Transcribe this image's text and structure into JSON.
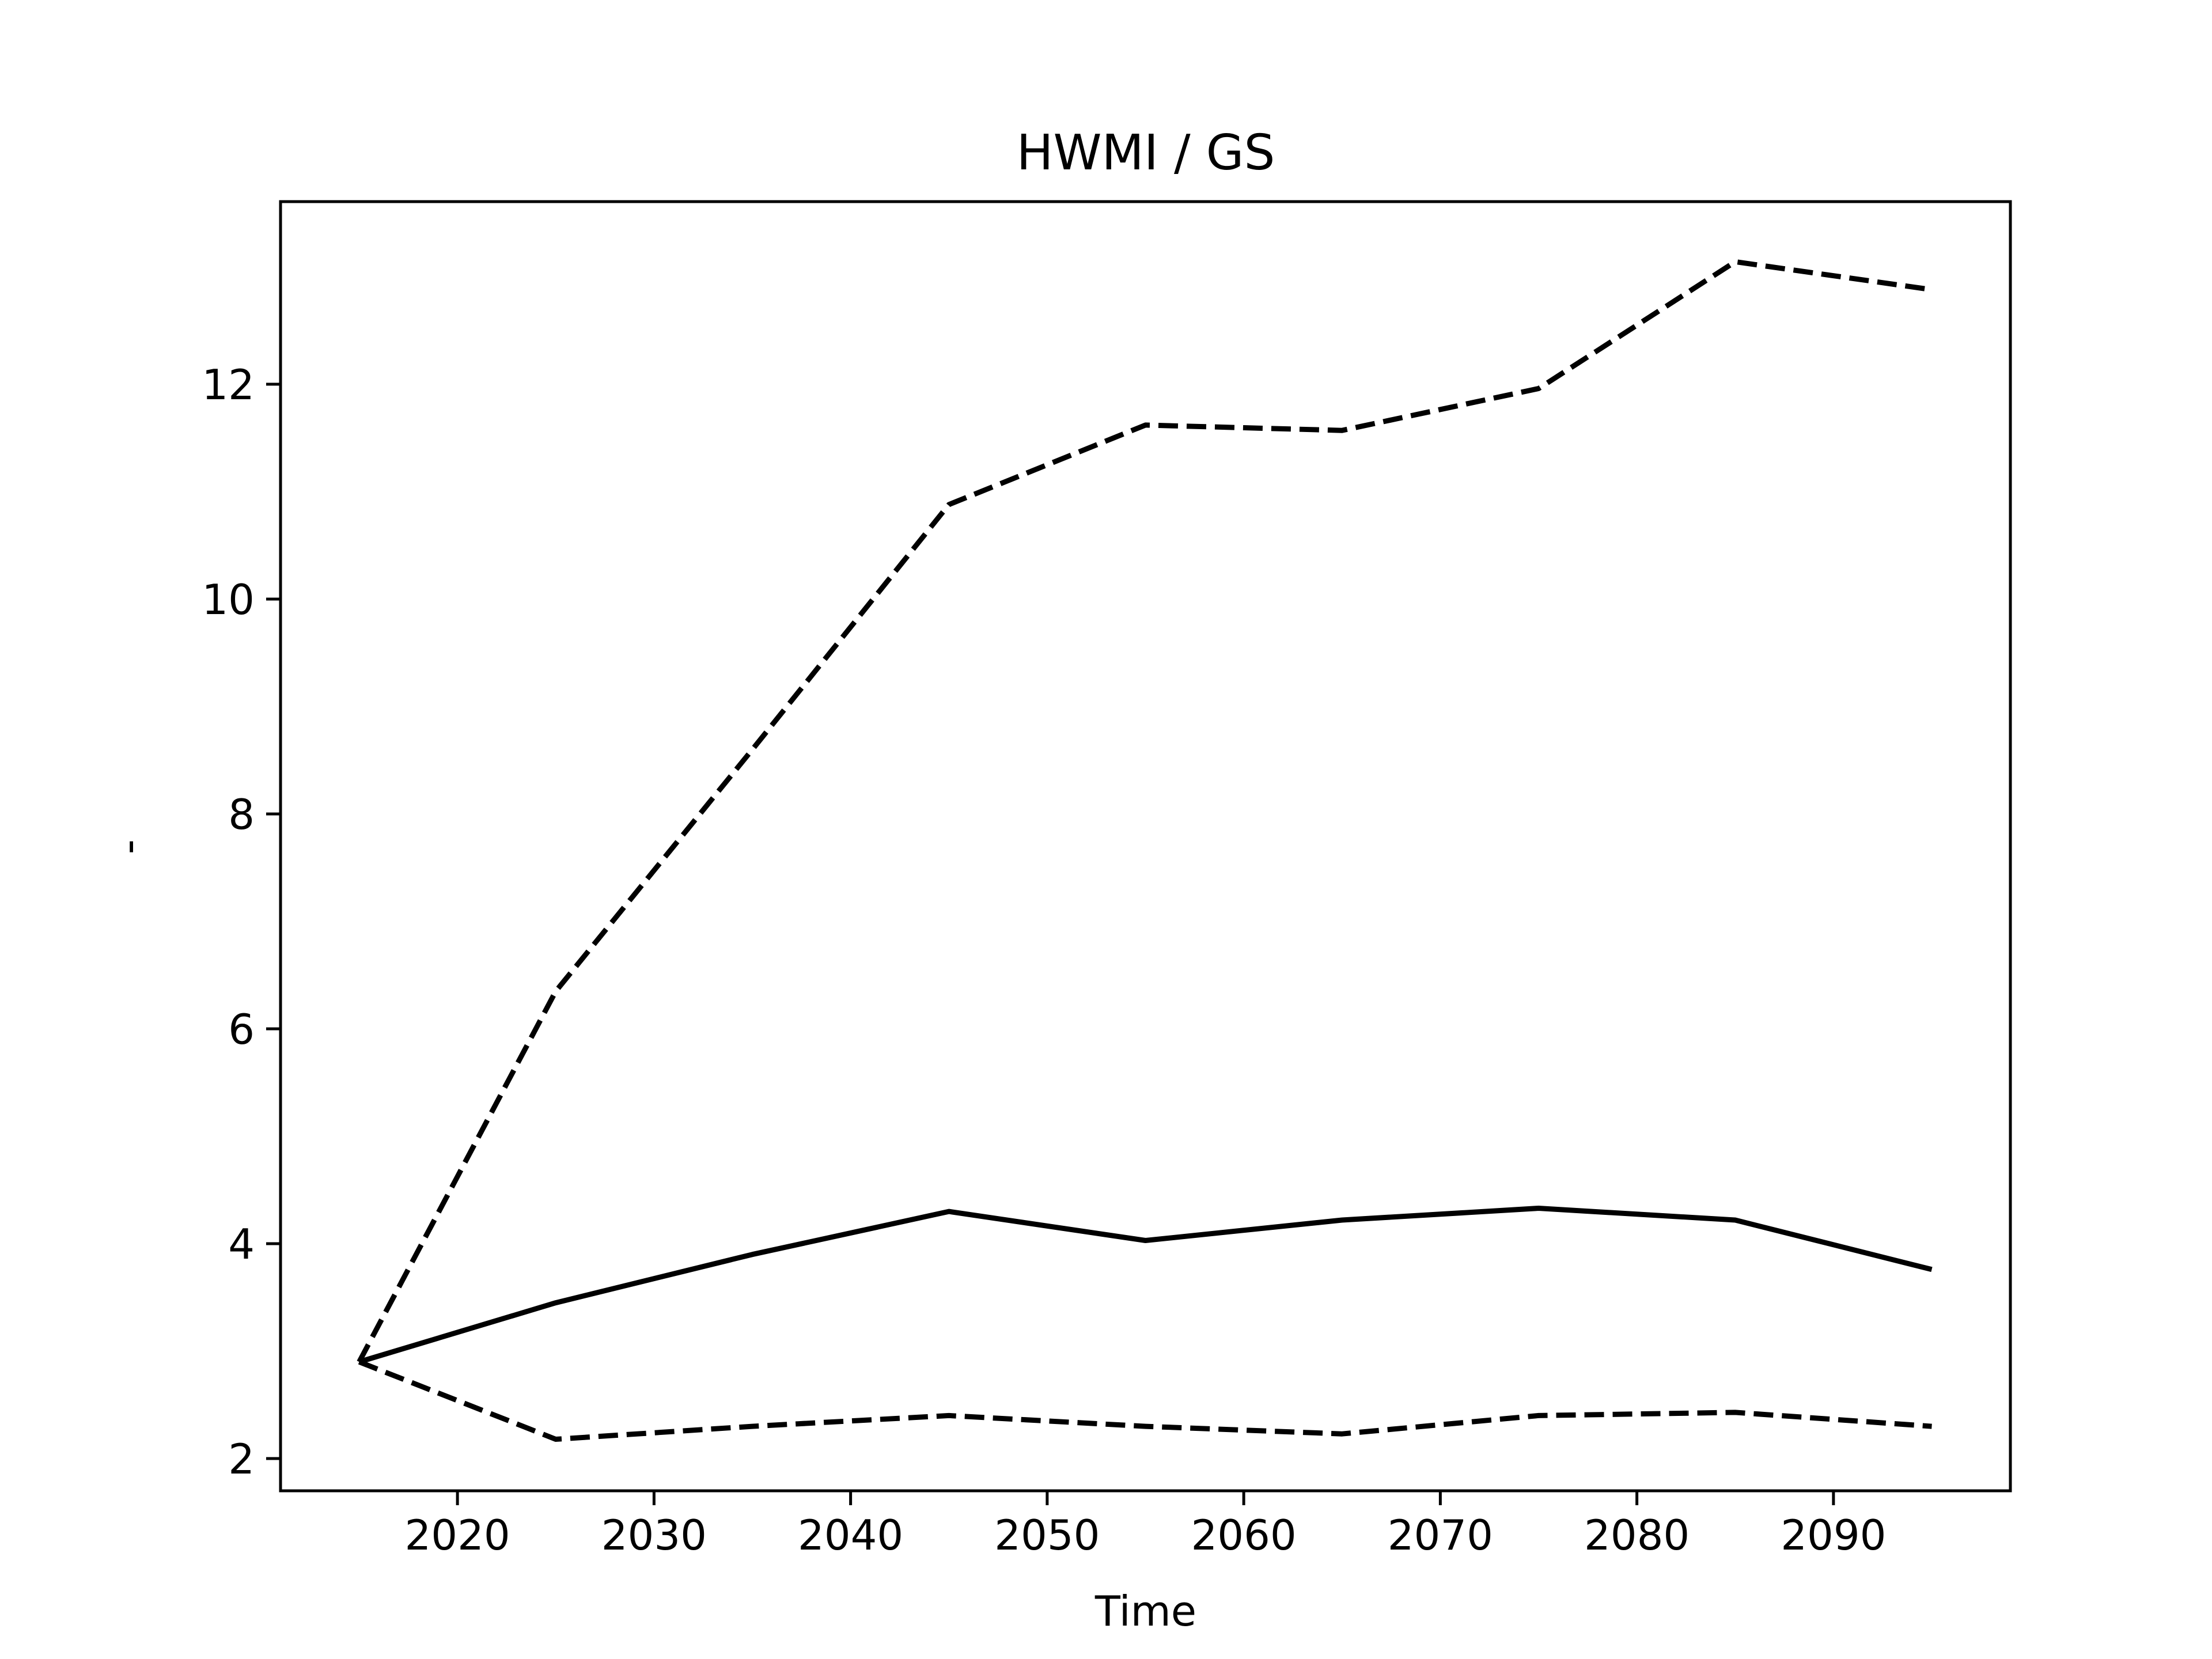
{
  "chart_data": {
    "type": "line",
    "title": "HWMI / GS",
    "xlabel": "Time",
    "ylabel": "-",
    "xlim": [
      2011,
      2099
    ],
    "ylim": [
      1.7,
      13.7
    ],
    "xticks": [
      2020,
      2030,
      2040,
      2050,
      2060,
      2070,
      2080,
      2090
    ],
    "yticks": [
      2,
      4,
      6,
      8,
      10,
      12
    ],
    "x": [
      2015,
      2025,
      2035,
      2045,
      2055,
      2065,
      2075,
      2085,
      2095
    ],
    "grid": false,
    "legend": "none",
    "series": [
      {
        "style": "solid",
        "color": "#000000",
        "values": [
          2.9,
          3.45,
          3.9,
          4.3,
          4.03,
          4.22,
          4.33,
          4.22,
          3.76
        ]
      },
      {
        "style": "dashed",
        "color": "#000000",
        "values": [
          2.9,
          6.35,
          8.6,
          10.88,
          11.62,
          11.57,
          11.96,
          13.14,
          12.88
        ]
      },
      {
        "style": "dashed",
        "color": "#000000",
        "values": [
          2.9,
          2.18,
          2.3,
          2.4,
          2.3,
          2.23,
          2.4,
          2.43,
          2.3
        ]
      }
    ]
  }
}
